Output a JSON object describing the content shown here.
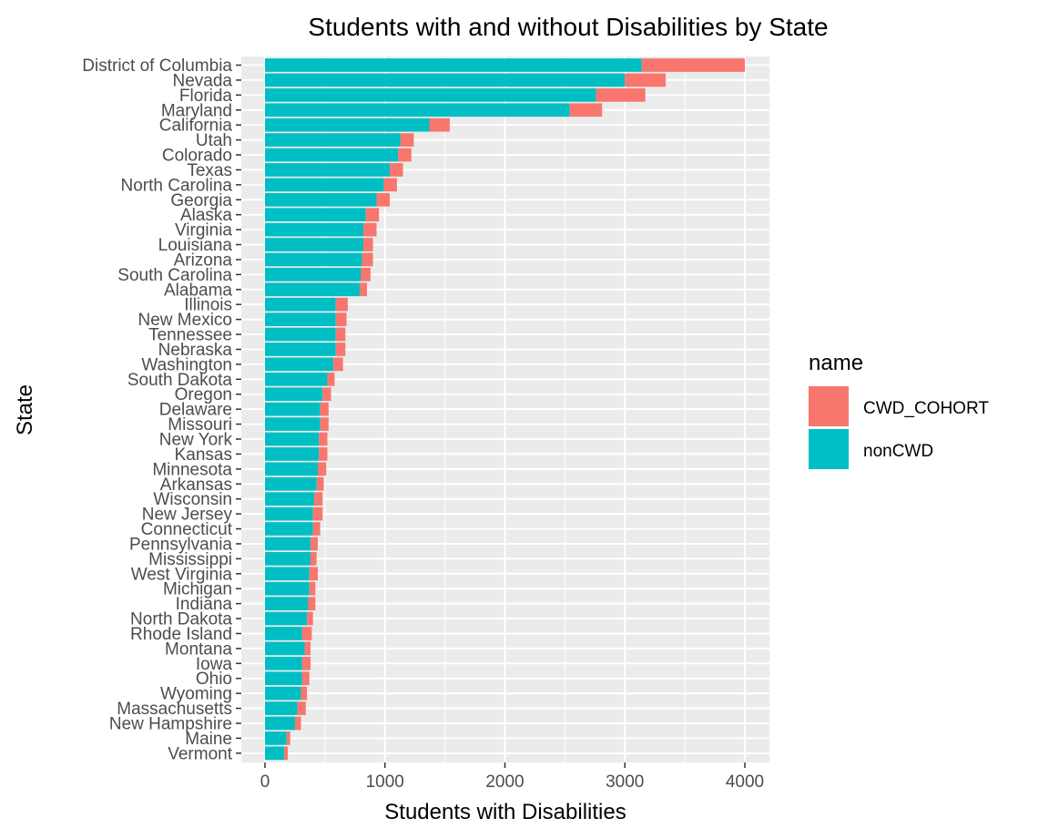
{
  "chart_data": {
    "type": "bar",
    "orientation": "horizontal",
    "stacked": true,
    "title": "Students with and without Disabilities by State",
    "xlabel": "Students with Disabilities",
    "ylabel": "State",
    "xlim": [
      0,
      4000
    ],
    "x_ticks": [
      0,
      1000,
      2000,
      3000,
      4000
    ],
    "x_tick_labels": [
      "0",
      "1000",
      "2000",
      "3000",
      "4000"
    ],
    "grid": true,
    "legend": {
      "title": "name",
      "placement": "right"
    },
    "categories": [
      "District of Columbia",
      "Nevada",
      "Florida",
      "Maryland",
      "California",
      "Utah",
      "Colorado",
      "Texas",
      "North Carolina",
      "Georgia",
      "Alaska",
      "Virginia",
      "Louisiana",
      "Arizona",
      "South Carolina",
      "Alabama",
      "Illinois",
      "New Mexico",
      "Tennessee",
      "Nebraska",
      "Washington",
      "South Dakota",
      "Oregon",
      "Delaware",
      "Missouri",
      "New York",
      "Kansas",
      "Minnesota",
      "Arkansas",
      "Wisconsin",
      "New Jersey",
      "Connecticut",
      "Pennsylvania",
      "Mississippi",
      "West Virginia",
      "Michigan",
      "Indiana",
      "North Dakota",
      "Rhode Island",
      "Montana",
      "Iowa",
      "Ohio",
      "Wyoming",
      "Massachusetts",
      "New Hampshire",
      "Maine",
      "Vermont"
    ],
    "series": [
      {
        "name": "nonCWD",
        "color": "#00BFC4",
        "values": [
          3140,
          3000,
          2760,
          2540,
          1370,
          1130,
          1110,
          1040,
          990,
          930,
          840,
          820,
          820,
          810,
          800,
          790,
          590,
          590,
          590,
          590,
          570,
          520,
          480,
          460,
          460,
          450,
          450,
          440,
          430,
          410,
          400,
          400,
          380,
          380,
          370,
          370,
          360,
          350,
          310,
          330,
          310,
          310,
          300,
          270,
          250,
          180,
          160
        ]
      },
      {
        "name": "CWD_COHORT",
        "color": "#F8766D",
        "values": [
          860,
          340,
          410,
          270,
          170,
          110,
          110,
          110,
          110,
          110,
          110,
          110,
          80,
          90,
          80,
          60,
          100,
          90,
          80,
          80,
          80,
          60,
          70,
          70,
          70,
          70,
          70,
          70,
          60,
          70,
          80,
          60,
          60,
          50,
          70,
          50,
          60,
          50,
          80,
          50,
          70,
          60,
          50,
          70,
          50,
          30,
          30
        ]
      }
    ]
  }
}
